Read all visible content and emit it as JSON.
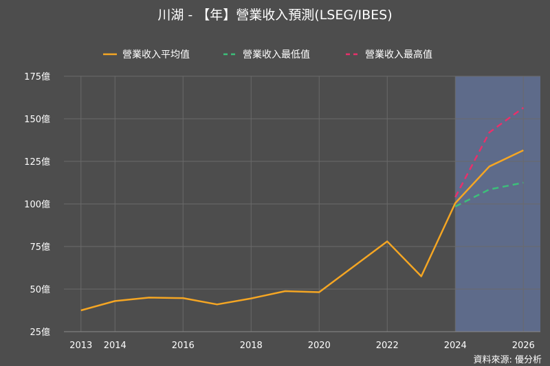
{
  "chart_data": {
    "type": "line",
    "title": "川湖 - 【年】營業收入預測(LSEG/IBES)",
    "source": "資料來源: 優分析",
    "x_ticks": [
      2013,
      2014,
      2016,
      2018,
      2020,
      2022,
      2024,
      2026
    ],
    "y_ticks": [
      25,
      50,
      75,
      100,
      125,
      150,
      175
    ],
    "y_tick_labels": [
      "25億",
      "50億",
      "75億",
      "100億",
      "125億",
      "150億",
      "175億"
    ],
    "xlim": [
      2012.5,
      2026.5
    ],
    "ylim": [
      25,
      175
    ],
    "grid": true,
    "legend_position": "top-center",
    "forecast_region": {
      "x_start": 2024,
      "x_end": 2026.5,
      "color": "#5e6b8a"
    },
    "series": [
      {
        "name": "營業收入平均值",
        "color": "#f5a623",
        "dash": "solid",
        "points": [
          [
            2013,
            37.5
          ],
          [
            2014,
            43
          ],
          [
            2015,
            45
          ],
          [
            2016,
            44.7
          ],
          [
            2017,
            41
          ],
          [
            2018,
            44.5
          ],
          [
            2019,
            48.8
          ],
          [
            2020,
            48.2
          ],
          [
            2022,
            78
          ],
          [
            2023,
            57.5
          ],
          [
            2024,
            100.5
          ],
          [
            2025,
            122
          ],
          [
            2026,
            131.5
          ]
        ]
      },
      {
        "name": "營業收入最低值",
        "color": "#3cc07a",
        "dash": "dash",
        "points": [
          [
            2024,
            98.5
          ],
          [
            2025,
            108.5
          ],
          [
            2026,
            112.5
          ]
        ]
      },
      {
        "name": "營業收入最高值",
        "color": "#e8306b",
        "dash": "dash",
        "points": [
          [
            2024,
            104
          ],
          [
            2025,
            142
          ],
          [
            2026,
            156.5
          ]
        ]
      }
    ]
  }
}
